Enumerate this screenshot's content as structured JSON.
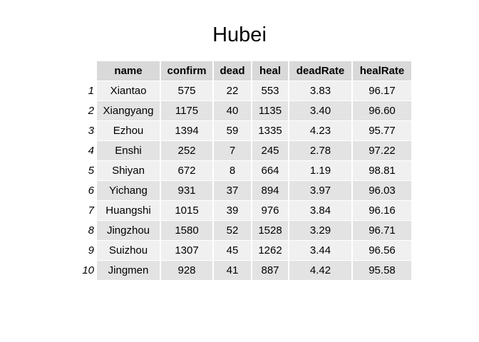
{
  "chart_data": {
    "type": "table",
    "title": "Hubei",
    "columns": [
      "name",
      "confirm",
      "dead",
      "heal",
      "deadRate",
      "healRate"
    ],
    "rows": [
      {
        "index": "1",
        "cells": [
          "Xiantao",
          "575",
          "22",
          "553",
          "3.83",
          "96.17"
        ]
      },
      {
        "index": "2",
        "cells": [
          "Xiangyang",
          "1175",
          "40",
          "1135",
          "3.40",
          "96.60"
        ]
      },
      {
        "index": "3",
        "cells": [
          "Ezhou",
          "1394",
          "59",
          "1335",
          "4.23",
          "95.77"
        ]
      },
      {
        "index": "4",
        "cells": [
          "Enshi",
          "252",
          "7",
          "245",
          "2.78",
          "97.22"
        ]
      },
      {
        "index": "5",
        "cells": [
          "Shiyan",
          "672",
          "8",
          "664",
          "1.19",
          "98.81"
        ]
      },
      {
        "index": "6",
        "cells": [
          "Yichang",
          "931",
          "37",
          "894",
          "3.97",
          "96.03"
        ]
      },
      {
        "index": "7",
        "cells": [
          "Huangshi",
          "1015",
          "39",
          "976",
          "3.84",
          "96.16"
        ]
      },
      {
        "index": "8",
        "cells": [
          "Jingzhou",
          "1580",
          "52",
          "1528",
          "3.29",
          "96.71"
        ]
      },
      {
        "index": "9",
        "cells": [
          "Suizhou",
          "1307",
          "45",
          "1262",
          "3.44",
          "96.56"
        ]
      },
      {
        "index": "10",
        "cells": [
          "Jingmen",
          "928",
          "41",
          "887",
          "4.42",
          "95.58"
        ]
      }
    ],
    "colors": {
      "header_bg": "#d9d9d9",
      "row_odd_bg": "#f0f0f0",
      "row_even_bg": "#e3e3e3"
    }
  }
}
